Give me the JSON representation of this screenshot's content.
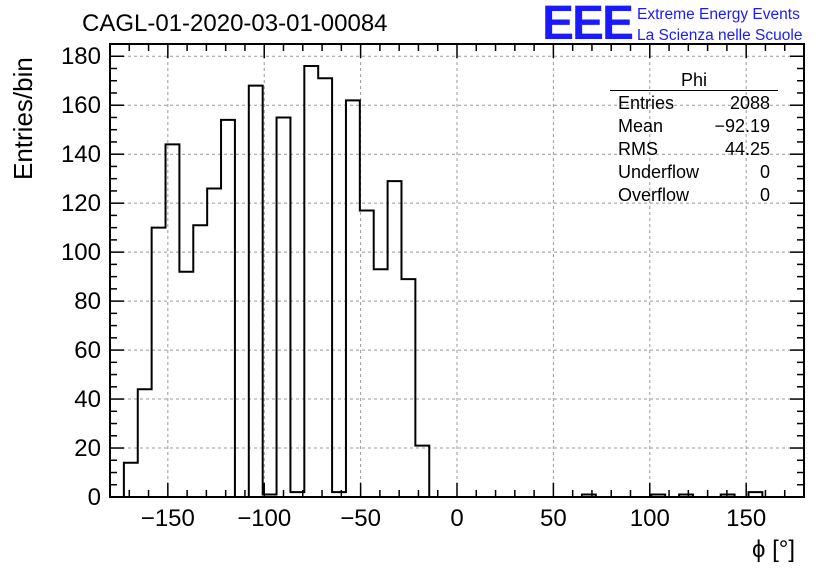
{
  "title": "CAGL-01-2020-03-01-00084",
  "logo": {
    "mark": "EEE",
    "line1": "Extreme Energy Events",
    "line2": "La Scienza nelle Scuole",
    "color": "#1a1aff"
  },
  "stats_box": {
    "title": "Phi",
    "rows": [
      {
        "label": "Entries",
        "value": "2088"
      },
      {
        "label": "Mean",
        "value": "−92.19"
      },
      {
        "label": "RMS",
        "value": "44.25"
      },
      {
        "label": "Underflow",
        "value": "0"
      },
      {
        "label": "Overflow",
        "value": "0"
      }
    ]
  },
  "chart_data": {
    "type": "bar",
    "title": "CAGL-01-2020-03-01-00084",
    "xlabel": "ϕ [°]",
    "ylabel": "Entries/bin",
    "xlim": [
      -180,
      180
    ],
    "ylim": [
      0,
      185
    ],
    "bin_width": 7.2,
    "bin_start": -180,
    "x_ticks": [
      -150,
      -100,
      -50,
      0,
      50,
      100,
      150
    ],
    "x_tick_labels": [
      "−150",
      "−100",
      "−50",
      "0",
      "50",
      "100",
      "150"
    ],
    "y_ticks": [
      0,
      20,
      40,
      60,
      80,
      100,
      120,
      140,
      160,
      180
    ],
    "y_tick_labels": [
      "0",
      "20",
      "40",
      "60",
      "80",
      "100",
      "120",
      "140",
      "160",
      "180"
    ],
    "grid": true,
    "values": [
      0,
      14,
      44,
      110,
      144,
      92,
      111,
      126,
      154,
      0,
      168,
      1,
      155,
      2,
      176,
      171,
      2,
      162,
      117,
      93,
      129,
      89,
      21,
      0,
      0,
      0,
      0,
      0,
      0,
      0,
      0,
      0,
      0,
      0,
      1,
      0,
      0,
      0,
      0,
      1,
      0,
      1,
      0,
      0,
      1,
      0,
      2,
      0,
      0,
      0
    ],
    "line_color": "#000000"
  }
}
